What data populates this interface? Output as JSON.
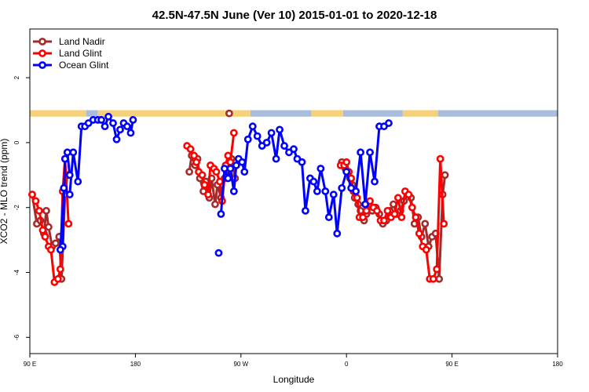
{
  "chart_data": {
    "type": "line",
    "title": "42.5N-47.5N June (Ver 10)   2015-01-01 to 2020-12-18",
    "xlabel": "Longitude",
    "ylabel": "XCO2 - MLO trend (ppm)",
    "xlim": [
      90,
      450
    ],
    "ylim": [
      -6.5,
      3.5
    ],
    "x_ticks": [
      {
        "value": 90,
        "label": "90 E"
      },
      {
        "value": 180,
        "label": "180"
      },
      {
        "value": 270,
        "label": "90 W"
      },
      {
        "value": 360,
        "label": "0"
      },
      {
        "value": 450,
        "label": "90 E"
      },
      {
        "value": 540,
        "label": "180"
      }
    ],
    "y_ticks": [
      {
        "value": 2,
        "label": "2"
      },
      {
        "value": 0,
        "label": "0"
      },
      {
        "value": -2,
        "label": "-2"
      },
      {
        "value": -4,
        "label": "-4"
      },
      {
        "value": -6,
        "label": "-6"
      }
    ],
    "x_axis_end": 540,
    "legend_position": "top-left",
    "surface_strip": {
      "y_range": [
        0.8,
        1.0
      ],
      "land_color": "#F5D27A",
      "ocean_color": "#A9BEDD",
      "segments": [
        {
          "from": 90,
          "to": 138,
          "kind": "land"
        },
        {
          "from": 138,
          "to": 148,
          "kind": "ocean"
        },
        {
          "from": 148,
          "to": 278,
          "kind": "land"
        },
        {
          "from": 278,
          "to": 330,
          "kind": "ocean"
        },
        {
          "from": 330,
          "to": 357,
          "kind": "land"
        },
        {
          "from": 357,
          "to": 408,
          "kind": "ocean"
        },
        {
          "from": 408,
          "to": 438,
          "kind": "land"
        },
        {
          "from": 438,
          "to": 540,
          "kind": "ocean"
        }
      ]
    },
    "series": [
      {
        "name": "Land Nadir",
        "color": "#A52A2A",
        "segments": [
          [
            [
              92,
              -1.6
            ],
            [
              96,
              -2.5
            ],
            [
              99,
              -2.4
            ],
            [
              102,
              -2.8
            ],
            [
              104,
              -2.1
            ],
            [
              106,
              -2.6
            ],
            [
              109,
              -3.2
            ],
            [
              112,
              -3.1
            ],
            [
              115,
              -2.9
            ],
            [
              117,
              -4.2
            ],
            [
              120,
              -1.6
            ],
            [
              122,
              -1.0
            ]
          ],
          [
            [
              226,
              -0.9
            ],
            [
              228,
              -0.4
            ],
            [
              231,
              -0.7
            ],
            [
              233,
              -0.5
            ],
            [
              235,
              -1.1
            ],
            [
              238,
              -1.5
            ],
            [
              240,
              -1.2
            ],
            [
              243,
              -1.7
            ],
            [
              245,
              -1.1
            ],
            [
              248,
              -1.9
            ],
            [
              250,
              -1.3
            ],
            [
              253,
              -1.7
            ],
            [
              256,
              -1.1
            ],
            [
              258,
              -0.8
            ],
            [
              260,
              -1.0
            ],
            [
              262,
              -0.5
            ],
            [
              265,
              -1.1
            ]
          ],
          [
            [
              356,
              -0.6
            ],
            [
              359,
              -0.8
            ],
            [
              361,
              -0.9
            ],
            [
              363,
              -1.1
            ],
            [
              365,
              -1.3
            ],
            [
              367,
              -1.7
            ],
            [
              370,
              -1.9
            ],
            [
              372,
              -2.1
            ],
            [
              375,
              -2.4
            ],
            [
              377,
              -2.2
            ],
            [
              379,
              -1.9
            ],
            [
              382,
              -2.1
            ],
            [
              385,
              -2.0
            ],
            [
              388,
              -2.2
            ],
            [
              391,
              -2.5
            ],
            [
              394,
              -2.4
            ],
            [
              397,
              -2.1
            ],
            [
              400,
              -1.9
            ],
            [
              403,
              -2.2
            ],
            [
              406,
              -2.1
            ],
            [
              409,
              -1.8
            ],
            [
              412,
              -1.6
            ],
            [
              415,
              -1.7
            ],
            [
              418,
              -2.5
            ],
            [
              421,
              -2.3
            ],
            [
              424,
              -2.9
            ],
            [
              427,
              -2.5
            ],
            [
              430,
              -3.2
            ],
            [
              433,
              -2.9
            ],
            [
              436,
              -2.8
            ],
            [
              439,
              -4.2
            ],
            [
              442,
              -1.6
            ],
            [
              444,
              -1.0
            ]
          ]
        ]
      },
      {
        "name": "Land Glint",
        "color": "#FF0000",
        "segments": [
          [
            [
              92,
              -1.6
            ],
            [
              95,
              -1.8
            ],
            [
              98,
              -2.1
            ],
            [
              101,
              -2.7
            ],
            [
              103,
              -2.9
            ],
            [
              106,
              -3.2
            ],
            [
              108,
              -3.3
            ],
            [
              111,
              -4.3
            ],
            [
              114,
              -4.2
            ],
            [
              116,
              -3.9
            ],
            [
              118,
              -1.5
            ],
            [
              120,
              -0.5
            ],
            [
              123,
              -2.5
            ]
          ],
          [
            [
              224,
              -0.1
            ],
            [
              227,
              -0.2
            ],
            [
              230,
              -0.4
            ],
            [
              232,
              -0.6
            ],
            [
              234,
              -0.9
            ],
            [
              237,
              -1.0
            ],
            [
              239,
              -1.3
            ],
            [
              242,
              -1.6
            ],
            [
              244,
              -0.7
            ],
            [
              247,
              -0.8
            ],
            [
              249,
              -0.9
            ],
            [
              252,
              -1.2
            ],
            [
              254,
              -1.8
            ],
            [
              257,
              -0.7
            ],
            [
              259,
              -0.4
            ],
            [
              261,
              -0.6
            ],
            [
              264,
              0.3
            ]
          ],
          [
            [
              355,
              -0.7
            ],
            [
              358,
              -0.7
            ],
            [
              360,
              -0.6
            ],
            [
              362,
              -0.9
            ],
            [
              364,
              -1.1
            ],
            [
              366,
              -1.5
            ],
            [
              369,
              -1.7
            ],
            [
              371,
              -2.3
            ],
            [
              374,
              -2.3
            ],
            [
              377,
              -2.1
            ],
            [
              380,
              -1.8
            ],
            [
              383,
              -2.0
            ],
            [
              386,
              -2.1
            ],
            [
              389,
              -2.4
            ],
            [
              392,
              -2.4
            ],
            [
              395,
              -2.1
            ],
            [
              398,
              -2.3
            ],
            [
              401,
              -2.2
            ],
            [
              404,
              -1.7
            ],
            [
              407,
              -2.3
            ],
            [
              410,
              -1.5
            ],
            [
              413,
              -1.6
            ],
            [
              416,
              -2.0
            ],
            [
              419,
              -2.3
            ],
            [
              422,
              -2.8
            ],
            [
              425,
              -3.2
            ],
            [
              428,
              -3.3
            ],
            [
              431,
              -4.2
            ],
            [
              434,
              -4.2
            ],
            [
              437,
              -3.9
            ],
            [
              440,
              -0.5
            ],
            [
              443,
              -2.5
            ]
          ]
        ]
      },
      {
        "name": "Ocean Glint",
        "color": "#0000FF",
        "segments": [
          [
            [
              124,
              -1.0
            ],
            [
              122,
              -0.3
            ],
            [
              120,
              -0.5
            ],
            [
              118,
              -3.2
            ],
            [
              116,
              -3.3
            ],
            [
              119,
              -1.4
            ],
            [
              124,
              -1.6
            ],
            [
              127,
              -0.3
            ],
            [
              131,
              -1.2
            ],
            [
              134,
              0.5
            ],
            [
              137,
              0.5
            ],
            [
              140,
              0.6
            ],
            [
              144,
              0.7
            ],
            [
              148,
              0.7
            ],
            [
              151,
              0.7
            ],
            [
              154,
              0.5
            ],
            [
              157,
              0.8
            ],
            [
              161,
              0.6
            ],
            [
              164,
              0.1
            ],
            [
              167,
              0.4
            ],
            [
              170,
              0.6
            ],
            [
              173,
              0.5
            ],
            [
              176,
              0.3
            ],
            [
              178,
              0.7
            ]
          ],
          [
            [
              251,
              -3.4
            ]
          ],
          [
            [
              253,
              -2.2
            ],
            [
              256,
              -0.8
            ],
            [
              259,
              -1.1
            ],
            [
              261,
              -0.8
            ],
            [
              264,
              -1.5
            ],
            [
              266,
              -0.7
            ],
            [
              268,
              -0.5
            ],
            [
              271,
              -0.6
            ],
            [
              273,
              -0.9
            ],
            [
              276,
              0.1
            ],
            [
              280,
              0.5
            ],
            [
              284,
              0.2
            ],
            [
              288,
              -0.1
            ],
            [
              292,
              0.0
            ],
            [
              296,
              0.3
            ],
            [
              300,
              -0.5
            ],
            [
              303,
              0.4
            ],
            [
              307,
              -0.1
            ],
            [
              311,
              -0.3
            ],
            [
              315,
              -0.2
            ],
            [
              318,
              -0.5
            ],
            [
              322,
              -0.6
            ],
            [
              325,
              -2.1
            ],
            [
              329,
              -1.1
            ],
            [
              332,
              -1.2
            ],
            [
              335,
              -1.5
            ],
            [
              338,
              -0.8
            ],
            [
              342,
              -1.5
            ],
            [
              345,
              -2.3
            ],
            [
              349,
              -1.6
            ],
            [
              352,
              -2.8
            ],
            [
              356,
              -1.4
            ],
            [
              360,
              -0.9
            ],
            [
              364,
              -1.4
            ],
            [
              368,
              -1.5
            ],
            [
              372,
              -0.3
            ],
            [
              376,
              -1.9
            ],
            [
              380,
              -0.3
            ],
            [
              384,
              -1.2
            ],
            [
              388,
              0.5
            ],
            [
              392,
              0.5
            ],
            [
              396,
              0.6
            ]
          ]
        ]
      }
    ],
    "outlier_points": [
      {
        "series": "Land Glint",
        "x": 260,
        "y": 0.9,
        "color": "#A52A2A"
      }
    ]
  }
}
